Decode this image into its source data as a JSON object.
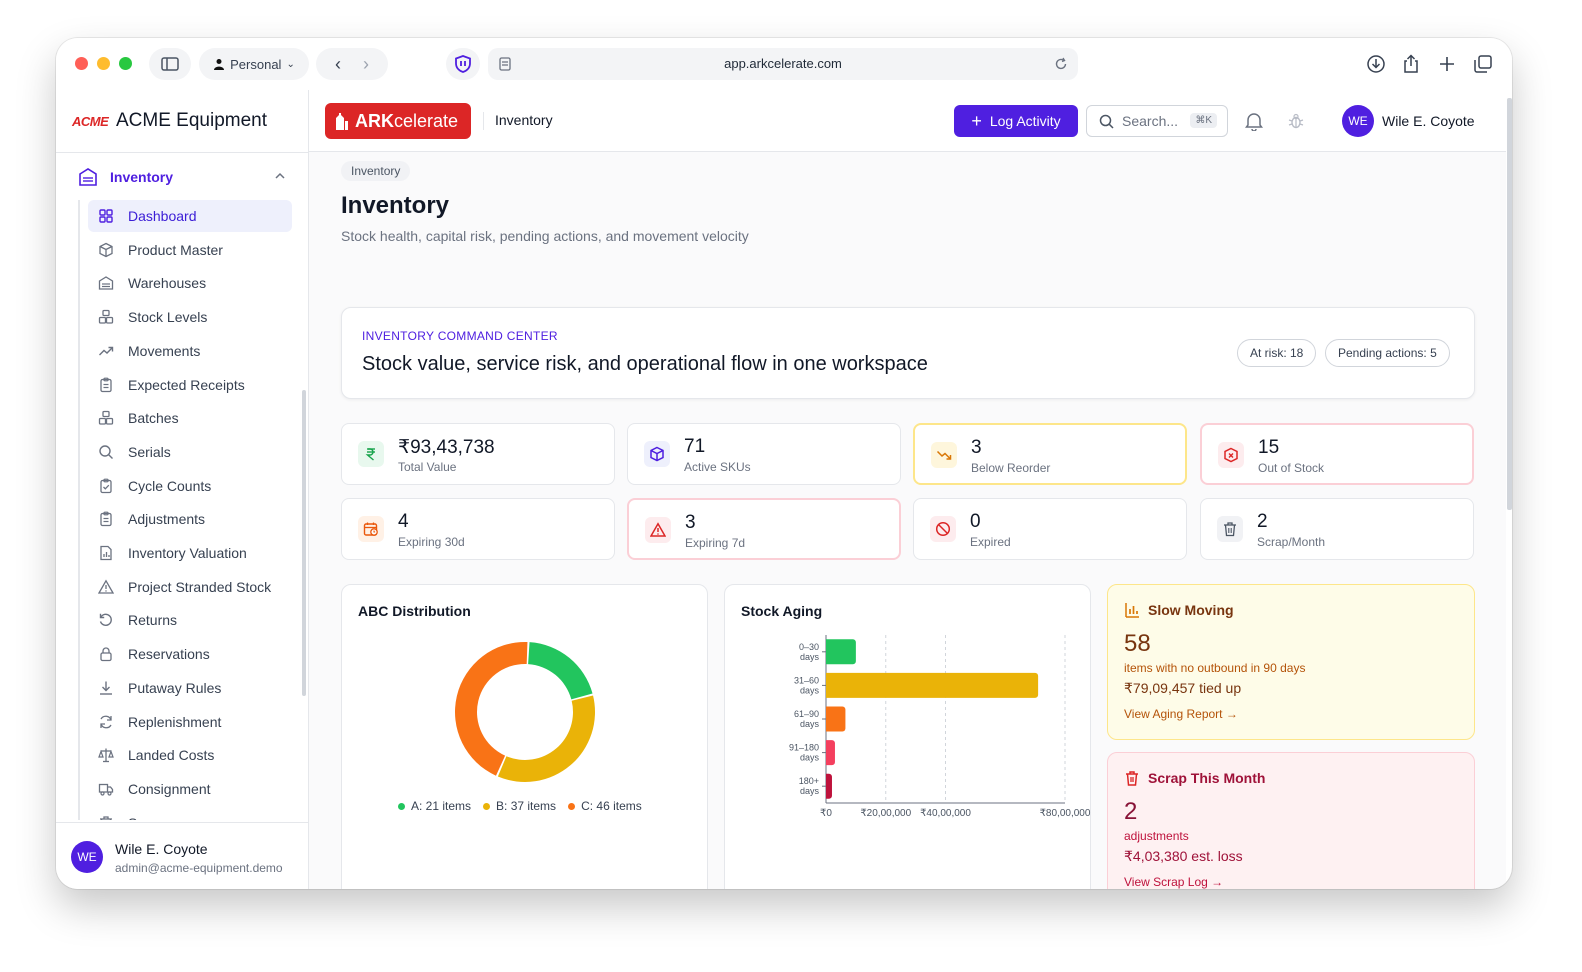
{
  "browser": {
    "profile": "Personal",
    "url": "app.arkcelerate.com"
  },
  "sidebar": {
    "org_logo": "ACME",
    "org_name": "ACME Equipment",
    "group_label": "Inventory",
    "items": [
      {
        "label": "Dashboard",
        "icon": "grid-icon",
        "active": true
      },
      {
        "label": "Product Master",
        "icon": "box-icon"
      },
      {
        "label": "Warehouses",
        "icon": "warehouse-icon"
      },
      {
        "label": "Stock Levels",
        "icon": "boxes-icon"
      },
      {
        "label": "Movements",
        "icon": "trend-icon"
      },
      {
        "label": "Expected Receipts",
        "icon": "clipboard-icon"
      },
      {
        "label": "Batches",
        "icon": "boxes-icon"
      },
      {
        "label": "Serials",
        "icon": "search-icon"
      },
      {
        "label": "Cycle Counts",
        "icon": "clipboard-check-icon"
      },
      {
        "label": "Adjustments",
        "icon": "clipboard-icon"
      },
      {
        "label": "Inventory Valuation",
        "icon": "chart-file-icon"
      },
      {
        "label": "Project Stranded Stock",
        "icon": "warning-icon"
      },
      {
        "label": "Returns",
        "icon": "undo-icon"
      },
      {
        "label": "Reservations",
        "icon": "lock-icon"
      },
      {
        "label": "Putaway Rules",
        "icon": "download-icon"
      },
      {
        "label": "Replenishment",
        "icon": "refresh-icon"
      },
      {
        "label": "Landed Costs",
        "icon": "scale-icon"
      },
      {
        "label": "Consignment",
        "icon": "truck-icon"
      },
      {
        "label": "Scrap",
        "icon": "trash-icon"
      }
    ],
    "user": {
      "initials": "WE",
      "name": "Wile E. Coyote",
      "email": "admin@acme-equipment.demo"
    }
  },
  "header": {
    "logo_bold": "ARK",
    "logo_rest": "celerate",
    "breadcrumb": "Inventory",
    "log_button": "Log Activity",
    "search_placeholder": "Search...",
    "search_shortcut": "⌘K",
    "user": {
      "initials": "WE",
      "name": "Wile E. Coyote"
    }
  },
  "page": {
    "crumb": "Inventory",
    "title": "Inventory",
    "subtitle": "Stock health, capital risk, pending actions, and movement velocity"
  },
  "command_center": {
    "eyebrow": "INVENTORY COMMAND CENTER",
    "title": "Stock value, service risk, and operational flow in one workspace",
    "chips": [
      "At risk: 18",
      "Pending actions: 5"
    ]
  },
  "kpis": [
    {
      "value": "₹93,43,738",
      "label": "Total Value",
      "icon": "rupee-icon",
      "tone": "normal",
      "color": "#16a34a",
      "bg": "#e8f8ee"
    },
    {
      "value": "71",
      "label": "Active SKUs",
      "icon": "cube-icon",
      "tone": "normal",
      "color": "#4f1fe0",
      "bg": "#eef0fc"
    },
    {
      "value": "3",
      "label": "Below Reorder",
      "icon": "trend-down-icon",
      "tone": "warn",
      "color": "#d97706",
      "bg": "#fef6dc"
    },
    {
      "value": "15",
      "label": "Out of Stock",
      "icon": "package-x-icon",
      "tone": "danger",
      "color": "#dc2626",
      "bg": "#fdecee"
    },
    {
      "value": "4",
      "label": "Expiring 30d",
      "icon": "calendar-clock-icon",
      "tone": "normal",
      "color": "#ea580c",
      "bg": "#fff1e6"
    },
    {
      "value": "3",
      "label": "Expiring 7d",
      "icon": "alert-triangle-icon",
      "tone": "danger",
      "color": "#dc2626",
      "bg": "#fdecee"
    },
    {
      "value": "0",
      "label": "Expired",
      "icon": "ban-icon",
      "tone": "normal",
      "color": "#dc2626",
      "bg": "#fdecee"
    },
    {
      "value": "2",
      "label": "Scrap/Month",
      "icon": "trash-icon",
      "tone": "normal",
      "color": "#4b5563",
      "bg": "#f1f2f5"
    }
  ],
  "abc": {
    "title": "ABC Distribution",
    "chart_data": {
      "type": "pie",
      "labels": [
        "A",
        "B",
        "C"
      ],
      "values": [
        21,
        37,
        46
      ],
      "colors": [
        "#22c55e",
        "#eab308",
        "#f97316"
      ],
      "legend": [
        "A: 21 items",
        "B: 37 items",
        "C: 46 items"
      ]
    }
  },
  "aging": {
    "title": "Stock Aging",
    "chart_data": {
      "type": "bar",
      "orientation": "horizontal",
      "categories": [
        [
          "0–30",
          "days"
        ],
        [
          "31–60",
          "days"
        ],
        [
          "61–90",
          "days"
        ],
        [
          "91–180",
          "days"
        ],
        [
          "180+",
          "days"
        ]
      ],
      "values": [
        1000000,
        7100000,
        650000,
        300000,
        200000
      ],
      "colors": [
        "#22c55e",
        "#eab308",
        "#f97316",
        "#f43f5e",
        "#be123c"
      ],
      "xlim": [
        0,
        8000000
      ],
      "x_ticks": [
        {
          "value": 0,
          "label": "₹0"
        },
        {
          "value": 2000000,
          "label": "₹20,00,000"
        },
        {
          "value": 4000000,
          "label": "₹40,00,000"
        },
        {
          "value": 8000000,
          "label": "₹80,00,000"
        }
      ]
    }
  },
  "slow_moving": {
    "title": "Slow Moving",
    "value": "58",
    "subtitle": "items with no outbound in 90 days",
    "amount": "₹79,09,457 tied up",
    "link": "View Aging Report →"
  },
  "scrap_month": {
    "title": "Scrap This Month",
    "value": "2",
    "subtitle": "adjustments",
    "amount": "₹4,03,380 est. loss",
    "link": "View Scrap Log →"
  }
}
